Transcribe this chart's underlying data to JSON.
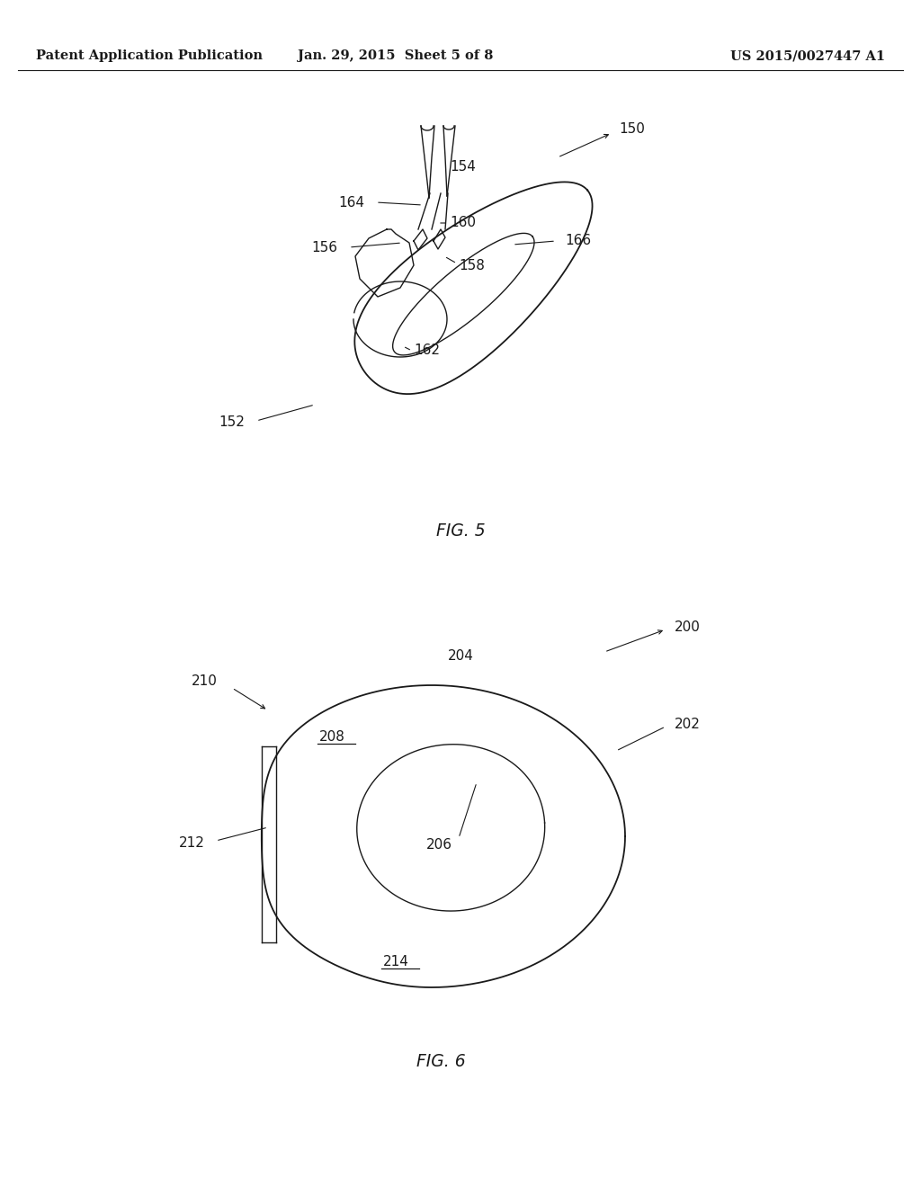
{
  "bg_color": "#ffffff",
  "header_left": "Patent Application Publication",
  "header_mid": "Jan. 29, 2015  Sheet 5 of 8",
  "header_right": "US 2015/0027447 A1",
  "fig5_label": "FIG. 5",
  "fig6_label": "FIG. 6",
  "line_color": "#1a1a1a",
  "text_color": "#1a1a1a",
  "header_fontsize": 10.5,
  "ref_fontsize": 11.0,
  "figcap_fontsize": 13.5
}
